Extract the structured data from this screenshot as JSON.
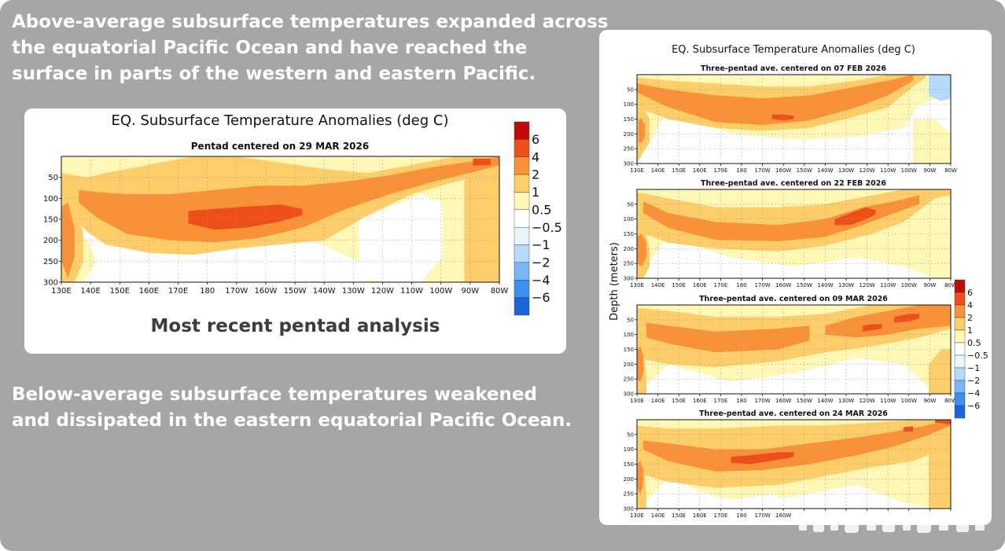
{
  "headline_top": [
    "Above-average subsurface temperatures expanded across",
    "the equatorial Pacific Ocean and have reached the",
    "surface in parts of the western and eastern Pacific."
  ],
  "headline_bottom": [
    "Below-average subsurface temperatures weakened",
    "and dissipated in the eastern equatorial Pacific Ocean."
  ],
  "main_panel": {
    "caption": "Most recent pentad analysis"
  },
  "colors": {
    "background": "#a6a6a6",
    "scale": [
      "#1a66d9",
      "#3d8ff0",
      "#79b4f5",
      "#b5dbfa",
      "#e8f6fb",
      "#ffffff",
      "#fff7b5",
      "#fccd68",
      "#f99138",
      "#ed4e1a",
      "#c20a0a"
    ]
  },
  "chart_data": [
    {
      "type": "heatmap",
      "id": "main",
      "title": "EQ. Subsurface Temperature Anomalies (deg C)",
      "subtitle": "Pentad centered on 29 MAR 2026",
      "xlabel": "",
      "ylabel": "",
      "x_ticks": [
        "130E",
        "140E",
        "150E",
        "160E",
        "170E",
        "180",
        "170W",
        "160W",
        "150W",
        "140W",
        "130W",
        "120W",
        "110W",
        "100W",
        "90W",
        "80W"
      ],
      "y_ticks": [
        50,
        100,
        150,
        200,
        250,
        300
      ],
      "ylim": [
        300,
        0
      ],
      "colorbar_levels": [
        "6",
        "4",
        "2",
        "1",
        "0.5",
        "−0.5",
        "−1",
        "−2",
        "−4",
        "−6"
      ],
      "core": [
        {
          "depth": [
            70,
            210
          ],
          "center": [
            95,
            150
          ],
          "value": 1
        },
        {
          "depth": [
            90,
            190
          ],
          "center": [
            115,
            140
          ],
          "value": 2
        },
        {
          "depth": [
            135,
            165
          ],
          "center": [
            130,
            150
          ],
          "value": 4
        }
      ]
    },
    {
      "type": "heatmap",
      "id": "feb07",
      "title": "EQ. Subsurface Temperature Anomalies (deg C)",
      "subtitle": "Three-pentad ave. centered on 07 FEB 2026",
      "ylabel": "Depth (meters)",
      "x_ticks": [
        "130E",
        "140E",
        "150E",
        "160E",
        "170E",
        "180",
        "170W",
        "160W",
        "150W",
        "140W",
        "130W",
        "120W",
        "110W",
        "100W",
        "90W",
        "80W"
      ],
      "y_ticks": [
        50,
        100,
        150,
        200,
        250,
        300
      ],
      "ylim": [
        300,
        0
      ],
      "colorbar_levels": [
        "6",
        "4",
        "2",
        "1",
        "0.5",
        "−0.5",
        "−1",
        "−2",
        "−4",
        "−6"
      ]
    },
    {
      "type": "heatmap",
      "id": "feb22",
      "subtitle": "Three-pentad ave. centered on 22 FEB 2026",
      "x_ticks": [
        "130E",
        "140E",
        "150E",
        "160E",
        "170E",
        "180",
        "170W",
        "160W",
        "150W",
        "140W",
        "130W",
        "120W",
        "110W",
        "100W",
        "90W",
        "80W"
      ],
      "y_ticks": [
        50,
        100,
        150,
        200,
        250,
        300
      ]
    },
    {
      "type": "heatmap",
      "id": "mar09",
      "subtitle": "Three-pentad ave. centered on 09 MAR 2026",
      "x_ticks": [
        "130E",
        "140E",
        "150E",
        "160E",
        "170E",
        "180",
        "170W",
        "160W",
        "150W",
        "140W",
        "130W",
        "120W",
        "110W",
        "100W",
        "90W",
        "80W"
      ],
      "y_ticks": [
        50,
        100,
        150,
        200,
        250,
        300
      ]
    },
    {
      "type": "heatmap",
      "id": "mar24",
      "subtitle": "Three-pentad ave. centered on 24 MAR 2026",
      "x_ticks": [
        "130E",
        "140E",
        "150E",
        "160E",
        "170E",
        "180",
        "170W",
        "160W"
      ],
      "y_ticks": [
        50,
        100,
        150,
        200,
        250,
        300
      ]
    }
  ]
}
